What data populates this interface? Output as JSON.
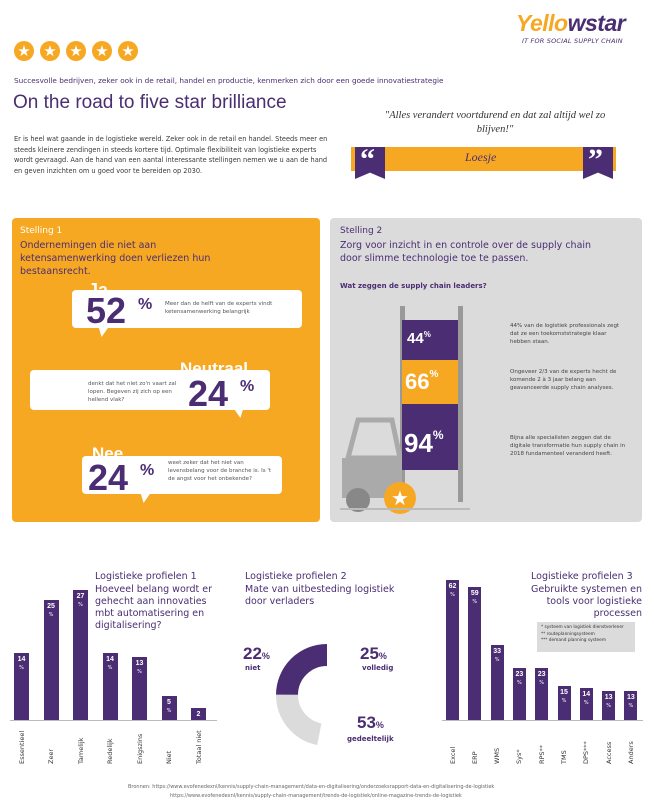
{
  "brand": {
    "name_a": "Yello",
    "name_b": "w",
    "name_c": "star",
    "tagline": "IT FOR SOCIAL SUPPLY CHAIN"
  },
  "header": {
    "subtitle": "Succesvolle bedrijven, zeker ook in de retail, handel en productie, kenmerken zich door een goede innovatiestrategie",
    "title": "On the road to five star brilliance",
    "intro": "Er is heel wat gaande in de logistieke wereld. Zeker ook in de retail en handel. Steeds meer en steeds kleinere zendingen in steeds kortere tijd. Optimale flexibiliteit van logistieke experts wordt gevraagd. Aan de hand van een aantal interessante stellingen nemen we u aan de hand en geven inzichten om u goed voor te bereiden op 2030."
  },
  "quote": {
    "text": "\"Alles verandert voortdurend en dat zal altijd wel zo blijven!\"",
    "author": "Loesje",
    "open": "“",
    "close": "”"
  },
  "colors": {
    "orange": "#f7a823",
    "purple": "#4a2d72",
    "grey": "#dcdbdc",
    "dark_grey": "#999999"
  },
  "stelling1": {
    "label": "Stelling 1",
    "title": "Ondernemingen die niet aan ketensamenwerking doen verliezen hun bestaansrecht.",
    "items": [
      {
        "answer": "Ja",
        "pct": "52",
        "sign": "%",
        "text": "Meer dan de helft van de experts vindt ketensamenwerking belangrijk"
      },
      {
        "answer": "Neutraal",
        "pct": "24",
        "sign": "%",
        "text": "denkt dat het niet zo'n vaart zal lopen. Begeven zij zich op een hellend vlak?"
      },
      {
        "answer": "Nee",
        "pct": "24",
        "sign": "%",
        "text": "weet zeker dat het niet van levensbelang voor de branche is. Is 't de angst voor het onbekende?"
      }
    ]
  },
  "stelling2": {
    "label": "Stelling 2",
    "title": "Zorg voor inzicht in en controle over de supply chain door slimme technologie toe te passen.",
    "question": "Wat zeggen de supply chain leaders?",
    "items": [
      {
        "pct": "44",
        "sign": "%",
        "text": "44% van de logistiek professionals zegt dat ze een toekomststrategie klaar hebben staan."
      },
      {
        "pct": "66",
        "sign": "%",
        "text": "Ongeveer 2/3 van de experts hecht de komende 2 à 3 jaar belang aan geavanceerde supply chain analyses."
      },
      {
        "pct": "94",
        "sign": "%",
        "text": "Bijna alle specialisten zeggen dat de digitale transformatie hun supply chain in 2018 fundamenteel veranderd heeft."
      }
    ]
  },
  "profiel1": {
    "heading": "Logistieke profielen 1",
    "title": "Hoeveel belang wordt er gehecht aan innovaties mbt automatisering en digitalisering?"
  },
  "profiel2": {
    "heading": "Logistieke profielen 2",
    "title": "Mate van uitbesteding logistiek door verladers",
    "legend": {
      "niet": "niet",
      "volledig": "volledig",
      "gedeeltelijk": "gedeeltelijk"
    }
  },
  "profiel3": {
    "heading": "Logistieke profielen 3",
    "title": "Gebruikte systemen en tools voor logistieke processen",
    "notes": [
      "* systeem van logistiek dienstverlener",
      "** routeplanningsysteem",
      "*** demand planning systeem"
    ]
  },
  "chart_data": [
    {
      "type": "bar",
      "title": "Hoeveel belang wordt er gehecht aan innovaties mbt automatisering en digitalisering?",
      "categories": [
        "Essentieel",
        "Zeer",
        "Tamelijk",
        "Redelijk",
        "Enigszins",
        "Niet",
        "Totaal niet"
      ],
      "values": [
        14,
        25,
        27,
        14,
        13,
        5,
        2
      ],
      "ylim": [
        0,
        27
      ]
    },
    {
      "type": "pie",
      "title": "Mate van uitbesteding logistiek door verladers",
      "categories": [
        "niet",
        "volledig",
        "gedeeltelijk"
      ],
      "values": [
        22,
        25,
        53
      ]
    },
    {
      "type": "bar",
      "title": "Gebruikte systemen en tools voor logistieke processen",
      "categories": [
        "Excel",
        "ERP",
        "WMS",
        "Sys*",
        "RPS**",
        "TMS",
        "DPS***",
        "Access",
        "Anders"
      ],
      "values": [
        62,
        59,
        33,
        23,
        23,
        15,
        14,
        13,
        13
      ],
      "ylim": [
        0,
        62
      ]
    }
  ],
  "sources": {
    "line1": "Bronnen: https://www.evofenedexnl/kennis/supply-chain-management/data-en-digitalisering/onderzoeksrapport-data-en-digitalisering-de-logistiek",
    "line2": "https://www.evofenedexnl/kennis/supply-chain-management/trends-de-logistiek/online-magazine-trends-de-logistiek"
  }
}
